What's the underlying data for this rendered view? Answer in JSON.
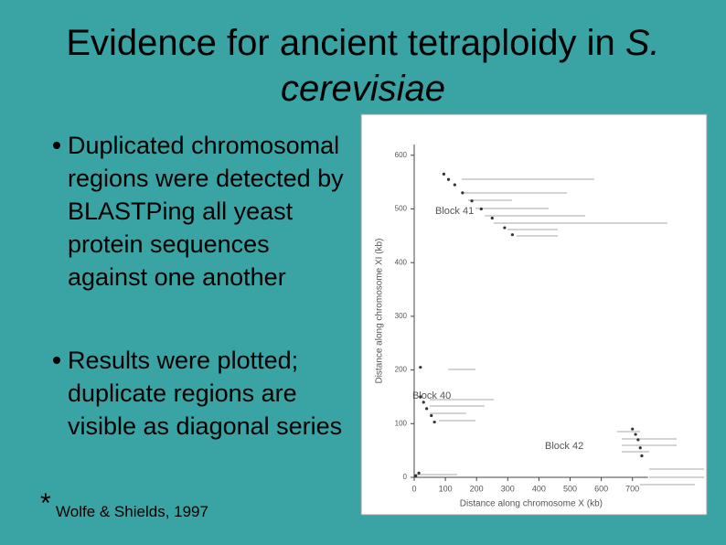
{
  "title": {
    "text": "Evidence for ancient tetraploidy in",
    "species": "S. cerevisiae"
  },
  "bullets": [
    "Duplicated chromosomal regions were detected by BLASTPing all yeast protein sequences against one another",
    "Results were plotted; duplicate regions are visible as diagonal series"
  ],
  "citation": {
    "mark": "*",
    "text": "Wolfe & Shields, 1997"
  },
  "figure": {
    "type": "scatter",
    "x_label": "Distance along chromosome X (kb)",
    "y_label": "Distance along chromosome XI (kb)",
    "xlim": [
      0,
      750
    ],
    "ylim": [
      0,
      620
    ],
    "xticks": [
      0,
      100,
      200,
      300,
      400,
      500,
      600,
      700
    ],
    "yticks": [
      0,
      100,
      200,
      300,
      400,
      500,
      600
    ],
    "annotations": [
      "Block 41",
      "Block 40",
      "Block 42"
    ],
    "x": [
      95,
      110,
      130,
      155,
      185,
      215,
      250,
      290,
      315,
      20,
      30,
      40,
      55,
      65,
      700,
      710,
      718,
      725,
      730,
      5,
      15,
      20
    ],
    "y": [
      565,
      555,
      545,
      530,
      515,
      500,
      483,
      465,
      452,
      150,
      140,
      128,
      115,
      103,
      90,
      80,
      70,
      55,
      40,
      3,
      8,
      205
    ]
  }
}
